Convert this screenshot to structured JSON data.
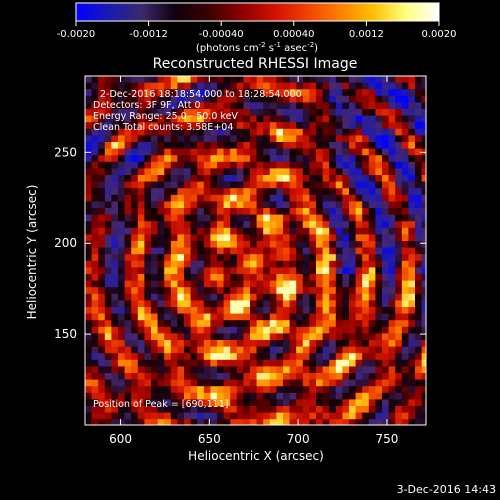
{
  "colorbar": {
    "min": -0.002,
    "max": 0.002,
    "ticks": [
      "-0.0020",
      "-0.0012",
      "-0.00040",
      "0.00040",
      "0.0012",
      "0.0020"
    ],
    "tick_values": [
      -0.002,
      -0.0012,
      -0.0004,
      0.0004,
      0.0012,
      0.002
    ],
    "units_html": "(photons cm<tspan baseline-shift='super' font-size='7'>-2</tspan> s<tspan baseline-shift='super' font-size='7'>-1</tspan> asec<tspan baseline-shift='super' font-size='7'>-2</tspan>)",
    "colors": [
      "#0000ff",
      "#1a1ab4",
      "#3a2a6a",
      "#100010",
      "#3a0000",
      "#8a0000",
      "#d01000",
      "#f04000",
      "#ff8000",
      "#ffc000",
      "#ffff80",
      "#ffffff"
    ]
  },
  "chart_data": {
    "type": "heatmap",
    "title": "Reconstructed RHESSI Image",
    "xlabel": "Heliocentric X (arcsec)",
    "ylabel": "Heliocentric Y (arcsec)",
    "xlim": [
      580,
      772
    ],
    "ylim": [
      100,
      292
    ],
    "xticks": [
      600,
      650,
      700,
      750
    ],
    "yticks": [
      150,
      200,
      250
    ],
    "peak": [
      690,
      111
    ],
    "annotations": {
      "time": "2-Dec-2016 18:18:54.000 to 18:28:54.000",
      "detectors": "Detectors: 3F 9F, Att 0",
      "energy": "Energy Range: 25.0 - 50.0 keV",
      "clean": "Clean     Total counts: 3.58E+04",
      "peak_label": "Position of Peak = [690,111]"
    }
  },
  "footer": {
    "date": "3-Dec-2016 14:43"
  }
}
